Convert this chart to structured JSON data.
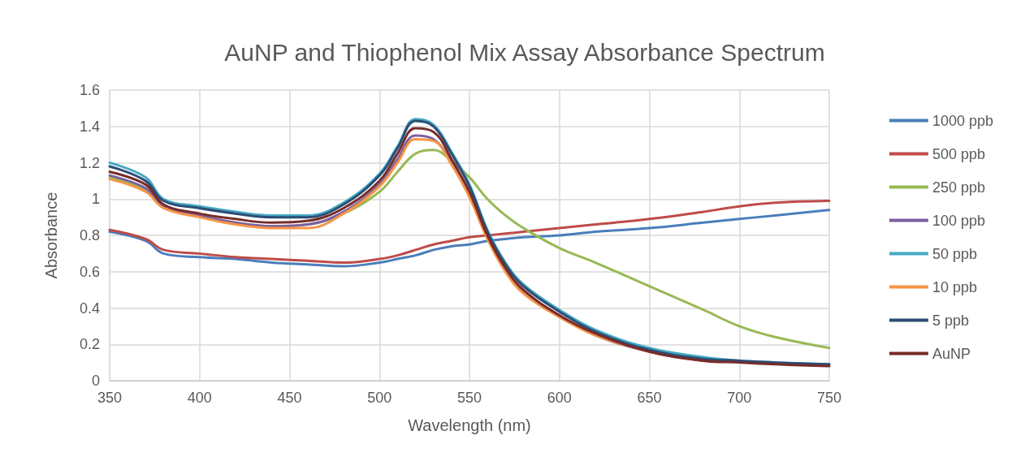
{
  "chart_data": {
    "type": "line",
    "title": "AuNP and Thiophenol Mix Assay Absorbance Spectrum",
    "xlabel": "Wavelength (nm)",
    "ylabel": "Absorbance",
    "x": [
      350,
      370,
      380,
      400,
      420,
      440,
      460,
      480,
      500,
      510,
      520,
      530,
      540,
      550,
      560,
      570,
      580,
      600,
      620,
      650,
      680,
      700,
      720,
      750
    ],
    "series": [
      {
        "name": "1000 ppb",
        "color": "#4a7ebb",
        "values": [
          0.82,
          0.77,
          0.7,
          0.68,
          0.67,
          0.65,
          0.64,
          0.63,
          0.65,
          0.67,
          0.69,
          0.72,
          0.74,
          0.75,
          0.77,
          0.78,
          0.79,
          0.8,
          0.82,
          0.84,
          0.87,
          0.89,
          0.91,
          0.94
        ]
      },
      {
        "name": "500 ppb",
        "color": "#be4b48",
        "values": [
          0.83,
          0.78,
          0.72,
          0.7,
          0.68,
          0.67,
          0.66,
          0.65,
          0.67,
          0.69,
          0.72,
          0.75,
          0.77,
          0.79,
          0.8,
          0.81,
          0.82,
          0.84,
          0.86,
          0.89,
          0.93,
          0.96,
          0.98,
          0.99
        ]
      },
      {
        "name": "250 ppb",
        "color": "#98b954",
        "values": [
          1.12,
          1.05,
          0.96,
          0.91,
          0.87,
          0.85,
          0.86,
          0.92,
          1.04,
          1.15,
          1.25,
          1.27,
          1.21,
          1.12,
          1.0,
          0.91,
          0.84,
          0.73,
          0.65,
          0.52,
          0.39,
          0.3,
          0.24,
          0.18
        ]
      },
      {
        "name": "100 ppb",
        "color": "#7d60a0",
        "values": [
          1.13,
          1.06,
          0.96,
          0.91,
          0.87,
          0.85,
          0.86,
          0.93,
          1.08,
          1.22,
          1.35,
          1.33,
          1.2,
          1.02,
          0.79,
          0.61,
          0.49,
          0.36,
          0.25,
          0.16,
          0.11,
          null,
          null,
          null
        ]
      },
      {
        "name": "50 ppb",
        "color": "#46aac5",
        "values": [
          1.2,
          1.12,
          1.0,
          0.96,
          0.93,
          0.91,
          0.91,
          0.98,
          1.14,
          1.29,
          1.44,
          1.41,
          1.26,
          1.08,
          0.83,
          0.65,
          0.53,
          0.39,
          0.28,
          0.18,
          0.13,
          0.11,
          0.1,
          0.09
        ]
      },
      {
        "name": "10 ppb",
        "color": "#f69546",
        "values": [
          1.11,
          1.04,
          0.95,
          0.9,
          0.86,
          0.84,
          0.84,
          0.92,
          1.07,
          1.2,
          1.33,
          1.32,
          1.19,
          1.01,
          0.78,
          0.6,
          0.48,
          0.35,
          0.25,
          0.16,
          0.11,
          null,
          null,
          null
        ]
      },
      {
        "name": "5 ppb",
        "color": "#2c4d75",
        "values": [
          1.18,
          1.1,
          0.99,
          0.95,
          0.92,
          0.9,
          0.9,
          0.97,
          1.13,
          1.28,
          1.43,
          1.4,
          1.25,
          1.07,
          0.82,
          0.64,
          0.52,
          0.38,
          0.27,
          0.17,
          0.12,
          0.11,
          0.1,
          0.09
        ]
      },
      {
        "name": "AuNP",
        "color": "#772c2a",
        "values": [
          1.15,
          1.08,
          0.97,
          0.92,
          0.89,
          0.87,
          0.88,
          0.95,
          1.1,
          1.25,
          1.39,
          1.37,
          1.22,
          1.04,
          0.8,
          0.62,
          0.5,
          0.36,
          0.26,
          0.16,
          0.11,
          0.1,
          0.09,
          0.08
        ]
      }
    ],
    "xlim": [
      350,
      750
    ],
    "xticks": [
      350,
      400,
      450,
      500,
      550,
      600,
      650,
      700,
      750
    ],
    "ylim": [
      0,
      1.6
    ],
    "yticks": [
      0,
      0.2,
      0.4,
      0.6,
      0.8,
      1,
      1.2,
      1.4,
      1.6
    ],
    "grid": true,
    "legend": "right",
    "marker": "none",
    "line_style": "solid"
  }
}
